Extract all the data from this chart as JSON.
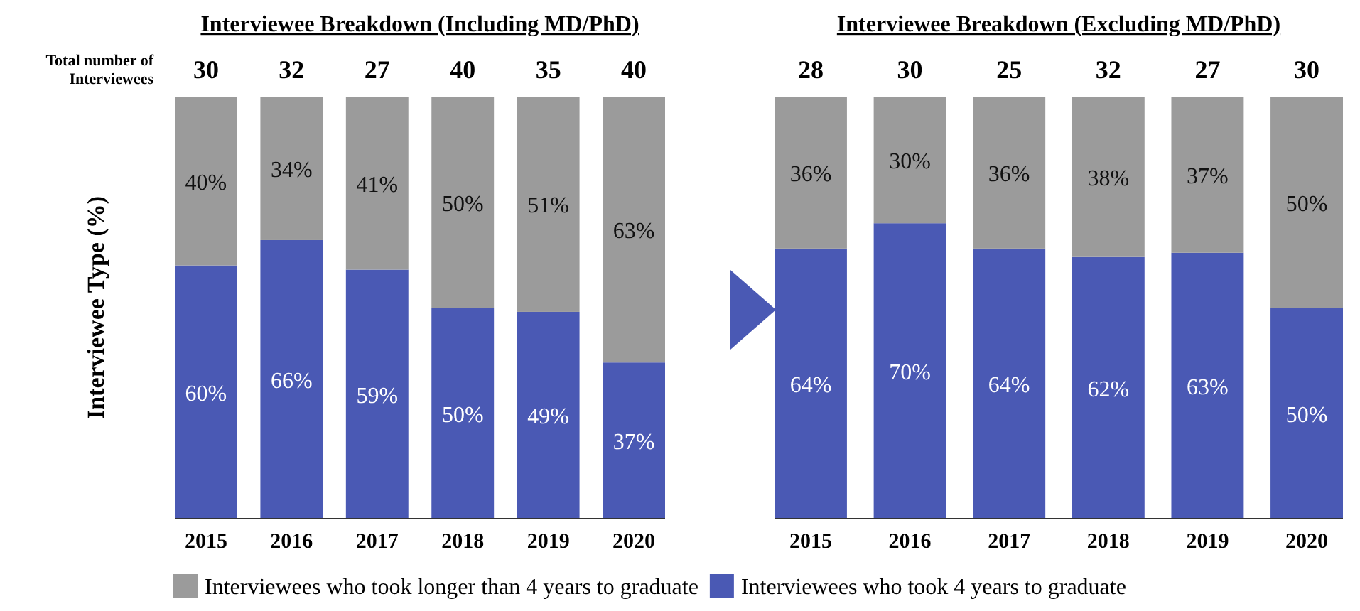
{
  "chart_data": [
    {
      "type": "bar",
      "stacked": true,
      "title": "Interviewee Breakdown (Including MD/PhD)",
      "ylabel": "Interviewee Type (%)",
      "categories": [
        "2015",
        "2016",
        "2017",
        "2018",
        "2019",
        "2020"
      ],
      "ylim": [
        0,
        100
      ],
      "tick_labels": "x",
      "legend": "bottom",
      "annotations": [
        "Total number of Interviewees",
        "30",
        "32",
        "27",
        "40",
        "35",
        "40"
      ],
      "series": [
        {
          "name": "Interviewees who took 4 years to graduate",
          "color": "#4a59b4",
          "values": [
            60,
            66,
            59,
            50,
            49,
            37
          ],
          "value_labels": [
            "60%",
            "66%",
            "59%",
            "50%",
            "49%",
            "37%"
          ]
        },
        {
          "name": "Interviewees who took longer than 4 years to graduate",
          "color": "#9b9b9b",
          "values": [
            40,
            34,
            41,
            50,
            51,
            63
          ],
          "value_labels": [
            "40%",
            "34%",
            "41%",
            "50%",
            "51%",
            "63%"
          ]
        }
      ]
    },
    {
      "type": "bar",
      "stacked": true,
      "title": "Interviewee Breakdown (Excluding MD/PhD)",
      "categories": [
        "2015",
        "2016",
        "2017",
        "2018",
        "2019",
        "2020"
      ],
      "ylim": [
        0,
        100
      ],
      "tick_labels": "x",
      "annotations": [
        "28",
        "30",
        "25",
        "32",
        "27",
        "30"
      ],
      "series": [
        {
          "color": "#4a59b4",
          "values": [
            64,
            70,
            64,
            62,
            63,
            50
          ],
          "value_labels": [
            "64%",
            "70%",
            "64%",
            "62%",
            "63%",
            "50%"
          ]
        },
        {
          "color": "#9b9b9b",
          "values": [
            36,
            30,
            36,
            38,
            37,
            50
          ],
          "value_labels": [
            "36%",
            "30%",
            "36%",
            "38%",
            "37%",
            "50%"
          ]
        }
      ]
    }
  ]
}
